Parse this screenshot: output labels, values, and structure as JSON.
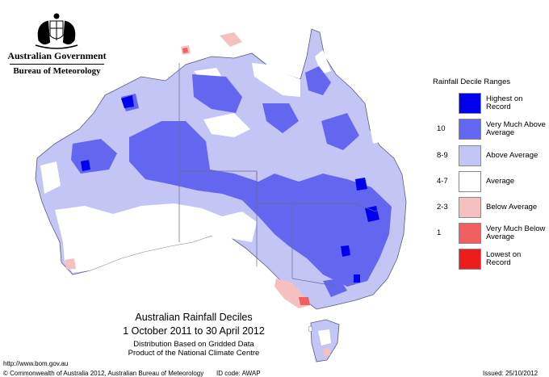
{
  "header": {
    "government": "Australian Government",
    "bureau": "Bureau of Meteorology"
  },
  "legend": {
    "title": "Rainfall Decile Ranges",
    "rows": [
      {
        "decile": "",
        "label": "Highest on Record",
        "color": "#0000ee"
      },
      {
        "decile": "10",
        "label": "Very Much Above Average",
        "color": "#6366ee"
      },
      {
        "decile": "8-9",
        "label": "Above Average",
        "color": "#c3c5f5"
      },
      {
        "decile": "4-7",
        "label": "Average",
        "color": "#ffffff"
      },
      {
        "decile": "2-3",
        "label": "Below Average",
        "color": "#f5c0c0"
      },
      {
        "decile": "1",
        "label": "Very Much Below Average",
        "color": "#f06060"
      },
      {
        "decile": "",
        "label": "Lowest on Record",
        "color": "#ee1c1c"
      }
    ]
  },
  "map_title": {
    "line1": "Australian Rainfall Deciles",
    "line2": "1 October 2011 to 30 April 2012",
    "line3": "Distribution Based on Gridded Data",
    "line4": "Product of the National Climate Centre"
  },
  "footer": {
    "url": "http://www.bom.gov.au",
    "copyright": "© Commonwealth of Australia 2012, Australian Bureau of Meteorology",
    "id_code": "ID code: AWAP",
    "issued": "Issued: 25/10/2012"
  }
}
